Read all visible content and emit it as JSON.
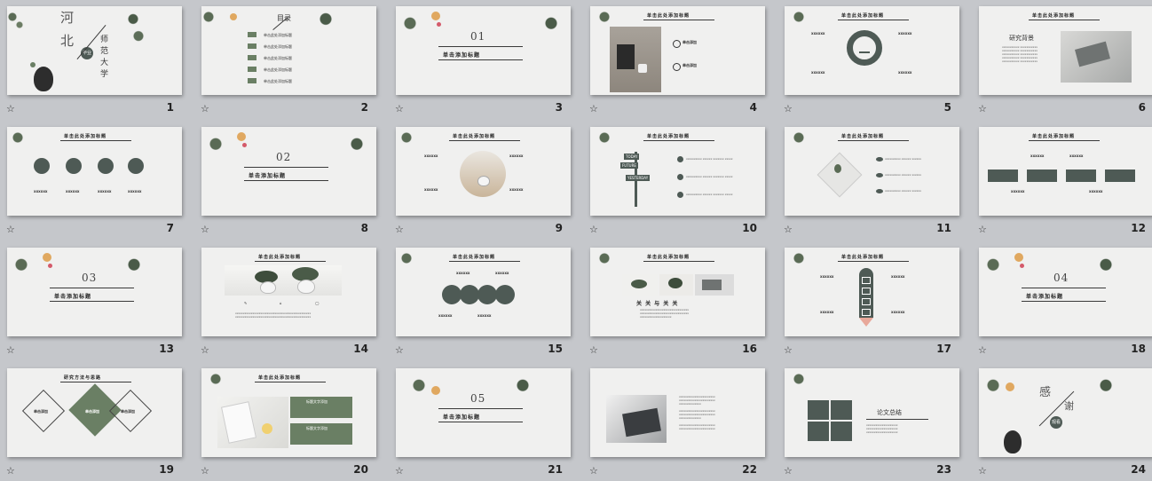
{
  "slides": [
    {
      "num": "1",
      "title_chars": [
        "河",
        "北"
      ],
      "sub_chars": [
        "师",
        "范",
        "大",
        "学"
      ],
      "badge": "毕业",
      "vert_text": "答辩人：xxx"
    },
    {
      "num": "2",
      "heading": "目录",
      "items": [
        "单击此处添加标题",
        "单击此处添加标题",
        "单击此处添加标题",
        "单击此处添加标题",
        "单击此处添加标题"
      ]
    },
    {
      "num": "3",
      "section": "01",
      "title": "单击添加标题",
      "subtitle": ""
    },
    {
      "num": "4",
      "header": "单击此处添加标题",
      "items": [
        "单击添加",
        "单击添加"
      ]
    },
    {
      "num": "5",
      "header": "单击此处添加标题"
    },
    {
      "num": "6",
      "header": "单击此处添加标题",
      "heading": "研究背景"
    },
    {
      "num": "7",
      "header": "单击此处添加标题"
    },
    {
      "num": "8",
      "section": "02",
      "title": "单击添加标题"
    },
    {
      "num": "9",
      "header": "单击此处添加标题"
    },
    {
      "num": "10",
      "header": "单击此处添加标题",
      "sign": [
        "TODAY",
        "FUTURE",
        "YESTERDAY"
      ]
    },
    {
      "num": "11",
      "header": "单击此处添加标题"
    },
    {
      "num": "12",
      "header": "单击此处添加标题"
    },
    {
      "num": "13",
      "section": "03",
      "title": "单击添加标题"
    },
    {
      "num": "14",
      "header": "单击此处添加标题"
    },
    {
      "num": "15",
      "header": "单击此处添加标题"
    },
    {
      "num": "16",
      "header": "单击此处添加标题",
      "caption": "关 关 与 关 关"
    },
    {
      "num": "17",
      "header": "单击此处添加标题"
    },
    {
      "num": "18",
      "section": "04",
      "title": "单击添加标题"
    },
    {
      "num": "19",
      "header": "研究方法与思路",
      "labels": [
        "单击添加",
        "单击添加",
        "单击添加"
      ]
    },
    {
      "num": "20",
      "header": "单击此处添加标题",
      "boxes": [
        "标题文字添加",
        "标题文字添加"
      ]
    },
    {
      "num": "21",
      "section": "05",
      "title": "单击添加标题"
    },
    {
      "num": "22",
      "header": ""
    },
    {
      "num": "23",
      "heading": "论文总结"
    },
    {
      "num": "24",
      "title_chars": [
        "感",
        "谢"
      ],
      "badge": "观看"
    }
  ],
  "star_symbol": "☆",
  "colors": {
    "accent": "#4e5a55",
    "green": "#6a7f64",
    "slide_bg": "#f0f0ef",
    "window_bg": "#c5c7cb"
  }
}
